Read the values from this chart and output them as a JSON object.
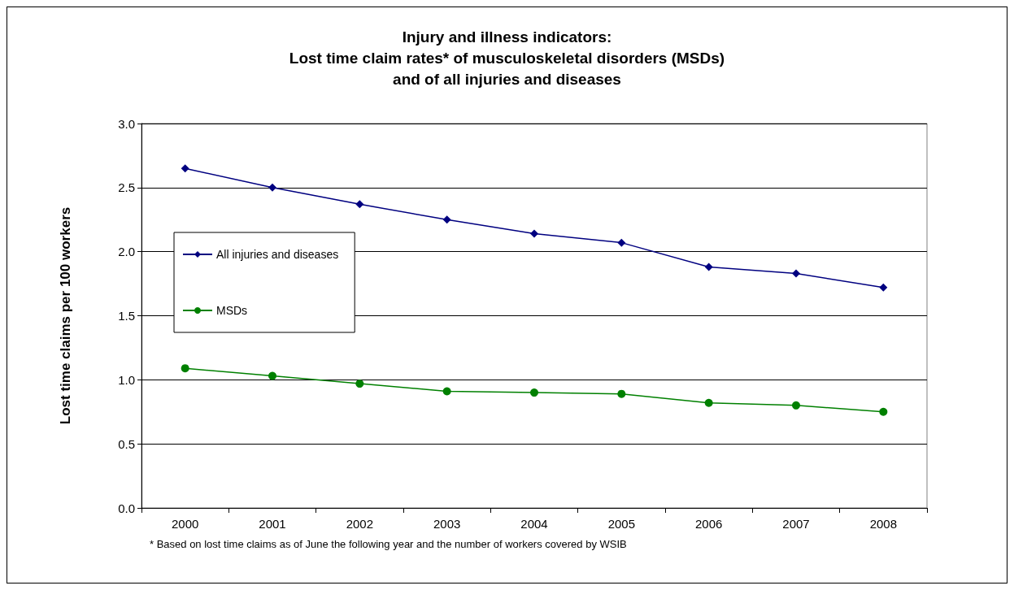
{
  "chart_data": {
    "type": "line",
    "title": "Injury and illness indicators:\nLost time claim rates* of musculoskeletal disorders (MSDs)\nand of all injuries and diseases",
    "ylabel": "Lost time claims per 100 workers",
    "categories": [
      "2000",
      "2001",
      "2002",
      "2003",
      "2004",
      "2005",
      "2006",
      "2007",
      "2008"
    ],
    "series": [
      {
        "name": "All injuries and diseases",
        "color": "#000080",
        "marker": "diamond",
        "values": [
          2.65,
          2.5,
          2.37,
          2.25,
          2.14,
          2.07,
          1.88,
          1.83,
          1.72
        ]
      },
      {
        "name": "MSDs",
        "color": "#008000",
        "marker": "circle",
        "values": [
          1.09,
          1.03,
          0.97,
          0.91,
          0.9,
          0.89,
          0.82,
          0.8,
          0.75
        ]
      }
    ],
    "ylim": [
      0,
      3
    ],
    "yticks": [
      {
        "value": 0,
        "label": "0.0"
      },
      {
        "value": 0.5,
        "label": "0.5"
      },
      {
        "value": 1,
        "label": "1.0"
      },
      {
        "value": 1.5,
        "label": "1.5"
      },
      {
        "value": 2,
        "label": "2.0"
      },
      {
        "value": 2.5,
        "label": "2.5"
      },
      {
        "value": 3,
        "label": "3.0"
      }
    ],
    "grid": "y",
    "legend": "left",
    "line_style": "solid",
    "annotations": [
      "* Based on lost time claims as of June the following year and the number of workers covered by WSIB"
    ]
  }
}
